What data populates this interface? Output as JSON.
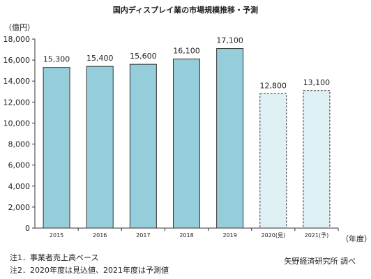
{
  "chart_data": {
    "type": "bar",
    "title": "国内ディスプレイ業の市場規模推移・予測",
    "ylabel": "（億円）",
    "xlabel": "（年度）",
    "categories": [
      "2015",
      "2016",
      "2017",
      "2018",
      "2019",
      "2020(見)",
      "2021(予)"
    ],
    "values": [
      15300,
      15400,
      15600,
      16100,
      17100,
      12800,
      13100
    ],
    "value_labels": [
      "15,300",
      "15,400",
      "15,600",
      "16,100",
      "17,100",
      "12,800",
      "13,100"
    ],
    "estimated": [
      false,
      false,
      false,
      false,
      false,
      true,
      true
    ],
    "ylim": [
      0,
      18000
    ],
    "yticks": [
      0,
      2000,
      4000,
      6000,
      8000,
      10000,
      12000,
      14000,
      16000,
      18000
    ],
    "ytick_labels": [
      "0",
      "2,000",
      "4,000",
      "6,000",
      "8,000",
      "10,000",
      "12,000",
      "14,000",
      "16,000",
      "18,000"
    ],
    "grid": false,
    "colors": {
      "actual_fill": "#95cddb",
      "estimate_fill": "#dff0f5",
      "bar_stroke": "#333333",
      "axis": "#333333"
    }
  },
  "notes": {
    "note1": "注1．事業者売上高ベース",
    "note2": "注2．2020年度は見込値、2021年度は予測値"
  },
  "source": "矢野経済研究所 調べ"
}
